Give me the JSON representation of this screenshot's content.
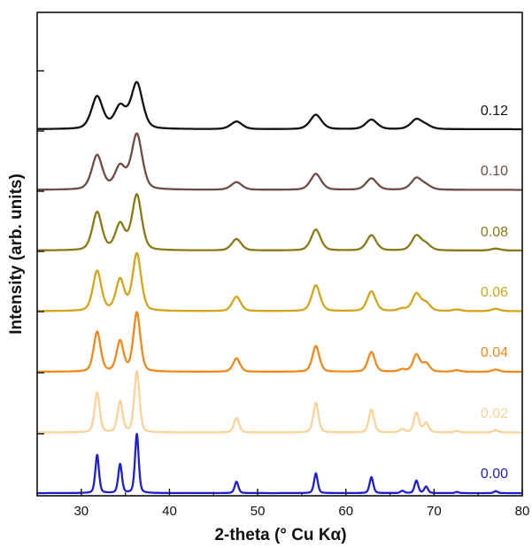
{
  "chart_data": {
    "type": "line",
    "title": "",
    "xlabel": "2-theta (° Cu Kα)",
    "ylabel": "Intensity (arb. units)",
    "xlim": [
      25,
      80
    ],
    "x_ticks": [
      30,
      40,
      50,
      60,
      70,
      80
    ],
    "y_tick_count": 7,
    "grid": false,
    "legend": "inline labels at right end of each curve",
    "series": [
      {
        "name": "0.00",
        "color": "#1f1fd0",
        "offset": 0,
        "peak_scale": 1.0,
        "width_scale": 1.0,
        "peaks": [
          [
            31.8,
            1.0
          ],
          [
            34.4,
            0.76
          ],
          [
            36.3,
            1.55
          ],
          [
            47.6,
            0.3
          ],
          [
            56.6,
            0.52
          ],
          [
            62.9,
            0.42
          ],
          [
            66.4,
            0.06
          ],
          [
            68.0,
            0.33
          ],
          [
            69.1,
            0.17
          ],
          [
            72.6,
            0.03
          ],
          [
            77.0,
            0.05
          ]
        ]
      },
      {
        "name": "0.02",
        "color": "#fbd29a",
        "offset": 1,
        "peak_scale": 1.0,
        "width_scale": 1.4,
        "peaks": [
          [
            31.8,
            1.05
          ],
          [
            34.4,
            0.82
          ],
          [
            36.3,
            1.6
          ],
          [
            47.6,
            0.38
          ],
          [
            56.6,
            0.78
          ],
          [
            62.9,
            0.6
          ],
          [
            66.4,
            0.08
          ],
          [
            68.0,
            0.52
          ],
          [
            69.1,
            0.25
          ],
          [
            72.6,
            0.04
          ],
          [
            77.0,
            0.06
          ]
        ]
      },
      {
        "name": "0.04",
        "color": "#f08a1c",
        "offset": 2,
        "peak_scale": 1.0,
        "width_scale": 1.9,
        "peaks": [
          [
            31.8,
            1.05
          ],
          [
            34.4,
            0.8
          ],
          [
            36.3,
            1.55
          ],
          [
            47.6,
            0.35
          ],
          [
            56.6,
            0.68
          ],
          [
            62.9,
            0.52
          ],
          [
            66.4,
            0.06
          ],
          [
            68.0,
            0.45
          ],
          [
            69.1,
            0.22
          ],
          [
            72.6,
            0.04
          ],
          [
            77.0,
            0.06
          ]
        ]
      },
      {
        "name": "0.06",
        "color": "#d2a51a",
        "offset": 3,
        "peak_scale": 1.0,
        "width_scale": 2.3,
        "peaks": [
          [
            31.8,
            1.05
          ],
          [
            34.4,
            0.82
          ],
          [
            36.3,
            1.5
          ],
          [
            47.6,
            0.38
          ],
          [
            56.6,
            0.68
          ],
          [
            62.9,
            0.52
          ],
          [
            66.4,
            0.06
          ],
          [
            68.0,
            0.45
          ],
          [
            69.1,
            0.2
          ],
          [
            72.6,
            0.04
          ],
          [
            77.0,
            0.06
          ]
        ]
      },
      {
        "name": "0.08",
        "color": "#8a7a14",
        "offset": 4,
        "peak_scale": 1.0,
        "width_scale": 2.6,
        "peaks": [
          [
            31.8,
            1.0
          ],
          [
            34.4,
            0.68
          ],
          [
            36.3,
            1.45
          ],
          [
            47.6,
            0.3
          ],
          [
            56.6,
            0.55
          ],
          [
            62.9,
            0.4
          ],
          [
            68.0,
            0.38
          ],
          [
            69.1,
            0.15
          ],
          [
            77.0,
            0.05
          ]
        ]
      },
      {
        "name": "0.10",
        "color": "#6f4d44",
        "offset": 5,
        "peak_scale": 1.0,
        "width_scale": 2.9,
        "peaks": [
          [
            31.8,
            0.9
          ],
          [
            34.4,
            0.6
          ],
          [
            36.3,
            1.45
          ],
          [
            47.6,
            0.2
          ],
          [
            56.6,
            0.42
          ],
          [
            62.9,
            0.3
          ],
          [
            68.0,
            0.3
          ],
          [
            69.1,
            0.1
          ]
        ]
      },
      {
        "name": "0.12",
        "color": "#111111",
        "offset": 6,
        "peak_scale": 1.0,
        "width_scale": 3.1,
        "peaks": [
          [
            31.8,
            0.85
          ],
          [
            34.4,
            0.58
          ],
          [
            36.3,
            1.2
          ],
          [
            47.6,
            0.2
          ],
          [
            56.6,
            0.38
          ],
          [
            62.9,
            0.25
          ],
          [
            68.0,
            0.25
          ],
          [
            69.1,
            0.08
          ]
        ]
      }
    ]
  }
}
